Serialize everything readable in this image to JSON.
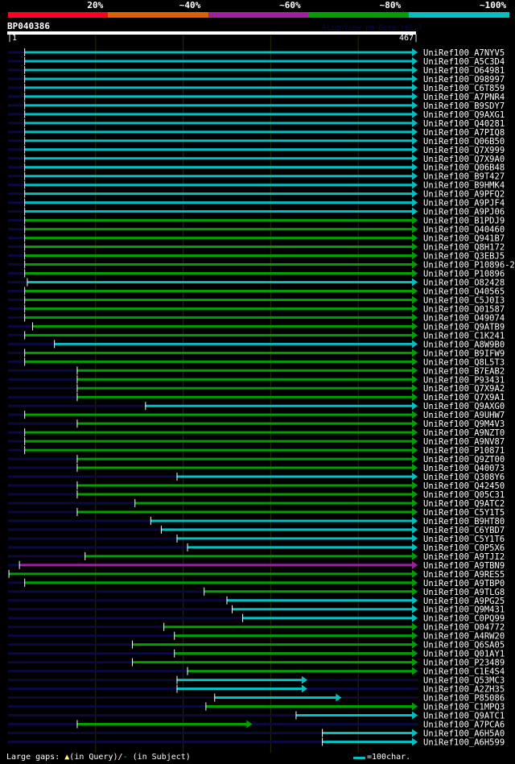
{
  "identity_scale": [
    {
      "label": "20%",
      "color": "#ff0020"
    },
    {
      "label": "~40%",
      "color": "#e06000"
    },
    {
      "label": "~60%",
      "color": "#a020a0"
    },
    {
      "label": "~80%",
      "color": "#00a000"
    },
    {
      "label": "~100%",
      "color": "#00c0c0"
    }
  ],
  "query": {
    "name": "BP040386",
    "start_label": "|1",
    "end_label": "467|",
    "length": 467
  },
  "version_text": "AlignView.pm Beta rel.7",
  "colors": {
    "cyan": "#00c0c0",
    "green": "#00a000",
    "magenta": "#a020a0",
    "subject": "#0a0a40",
    "grid": "#2a2a00"
  },
  "hits": [
    {
      "label": "UniRef100_A7NYV5",
      "start": 20,
      "end": 467,
      "c": "cyan"
    },
    {
      "label": "UniRef100_A5C3D4",
      "start": 20,
      "end": 467,
      "c": "cyan"
    },
    {
      "label": "UniRef100_O64981",
      "start": 20,
      "end": 467,
      "c": "cyan"
    },
    {
      "label": "UniRef100_O98997",
      "start": 20,
      "end": 467,
      "c": "cyan"
    },
    {
      "label": "UniRef100_C6T859",
      "start": 20,
      "end": 467,
      "c": "cyan"
    },
    {
      "label": "UniRef100_A7PNR4",
      "start": 20,
      "end": 467,
      "c": "cyan"
    },
    {
      "label": "UniRef100_B9SDY7",
      "start": 20,
      "end": 467,
      "c": "cyan"
    },
    {
      "label": "UniRef100_Q9AXG1",
      "start": 20,
      "end": 467,
      "c": "cyan"
    },
    {
      "label": "UniRef100_Q40281",
      "start": 20,
      "end": 467,
      "c": "cyan"
    },
    {
      "label": "UniRef100_A7PIQ8",
      "start": 20,
      "end": 467,
      "c": "cyan"
    },
    {
      "label": "UniRef100_Q06B50",
      "start": 20,
      "end": 467,
      "c": "cyan"
    },
    {
      "label": "UniRef100_Q7X999",
      "start": 20,
      "end": 467,
      "c": "cyan"
    },
    {
      "label": "UniRef100_Q7X9A0",
      "start": 20,
      "end": 467,
      "c": "cyan"
    },
    {
      "label": "UniRef100_Q06B48",
      "start": 20,
      "end": 467,
      "c": "cyan"
    },
    {
      "label": "UniRef100_B9T427",
      "start": 20,
      "end": 467,
      "c": "cyan"
    },
    {
      "label": "UniRef100_B9HMK4",
      "start": 20,
      "end": 467,
      "c": "cyan"
    },
    {
      "label": "UniRef100_A9PFQ2",
      "start": 20,
      "end": 467,
      "c": "cyan"
    },
    {
      "label": "UniRef100_A9PJF4",
      "start": 20,
      "end": 467,
      "c": "cyan"
    },
    {
      "label": "UniRef100_A9PJ06",
      "start": 20,
      "end": 467,
      "c": "cyan"
    },
    {
      "label": "UniRef100_B1PDJ9",
      "start": 20,
      "end": 467,
      "c": "green"
    },
    {
      "label": "UniRef100_Q40460",
      "start": 20,
      "end": 467,
      "c": "green"
    },
    {
      "label": "UniRef100_Q941B7",
      "start": 20,
      "end": 467,
      "c": "green"
    },
    {
      "label": "UniRef100_Q8H172",
      "start": 20,
      "end": 467,
      "c": "green"
    },
    {
      "label": "UniRef100_Q3EBJ5",
      "start": 20,
      "end": 467,
      "c": "green"
    },
    {
      "label": "UniRef100_P10896-2",
      "start": 20,
      "end": 467,
      "c": "green"
    },
    {
      "label": "UniRef100_P10896",
      "start": 20,
      "end": 467,
      "c": "green"
    },
    {
      "label": "UniRef100_O82428",
      "start": 23,
      "end": 467,
      "c": "cyan"
    },
    {
      "label": "UniRef100_Q40565",
      "start": 20,
      "end": 467,
      "c": "green"
    },
    {
      "label": "UniRef100_C5J0I3",
      "start": 20,
      "end": 467,
      "c": "green"
    },
    {
      "label": "UniRef100_Q01587",
      "start": 20,
      "end": 467,
      "c": "green"
    },
    {
      "label": "UniRef100_O49074",
      "start": 20,
      "end": 467,
      "c": "green"
    },
    {
      "label": "UniRef100_Q9ATB9",
      "start": 29,
      "end": 467,
      "c": "green"
    },
    {
      "label": "UniRef100_C1K241",
      "start": 20,
      "end": 467,
      "c": "green"
    },
    {
      "label": "UniRef100_A8W9B0",
      "start": 54,
      "end": 467,
      "c": "cyan"
    },
    {
      "label": "UniRef100_B9IFW9",
      "start": 20,
      "end": 467,
      "c": "green"
    },
    {
      "label": "UniRef100_Q8L5T3",
      "start": 20,
      "end": 467,
      "c": "green"
    },
    {
      "label": "UniRef100_B7EAB2",
      "start": 80,
      "end": 467,
      "c": "green"
    },
    {
      "label": "UniRef100_P93431",
      "start": 80,
      "end": 467,
      "c": "green"
    },
    {
      "label": "UniRef100_Q7X9A2",
      "start": 80,
      "end": 467,
      "c": "green"
    },
    {
      "label": "UniRef100_Q7X9A1",
      "start": 80,
      "end": 467,
      "c": "green"
    },
    {
      "label": "UniRef100_Q9AXG0",
      "start": 158,
      "end": 467,
      "c": "cyan"
    },
    {
      "label": "UniRef100_A9UHW7",
      "start": 20,
      "end": 467,
      "c": "green"
    },
    {
      "label": "UniRef100_Q9M4V3",
      "start": 80,
      "end": 467,
      "c": "green"
    },
    {
      "label": "UniRef100_A9NZT0",
      "start": 20,
      "end": 467,
      "c": "green"
    },
    {
      "label": "UniRef100_A9NV87",
      "start": 20,
      "end": 467,
      "c": "green"
    },
    {
      "label": "UniRef100_P10871",
      "start": 20,
      "end": 467,
      "c": "green"
    },
    {
      "label": "UniRef100_Q9ZT00",
      "start": 80,
      "end": 467,
      "c": "green"
    },
    {
      "label": "UniRef100_Q40073",
      "start": 80,
      "end": 467,
      "c": "green"
    },
    {
      "label": "UniRef100_Q308Y6",
      "start": 194,
      "end": 467,
      "c": "cyan"
    },
    {
      "label": "UniRef100_Q42450",
      "start": 80,
      "end": 467,
      "c": "green"
    },
    {
      "label": "UniRef100_Q05C31",
      "start": 80,
      "end": 467,
      "c": "green"
    },
    {
      "label": "UniRef100_Q9ATC2",
      "start": 146,
      "end": 467,
      "c": "green"
    },
    {
      "label": "UniRef100_C5Y1T5",
      "start": 80,
      "end": 467,
      "c": "green"
    },
    {
      "label": "UniRef100_B9HT80",
      "start": 164,
      "end": 467,
      "c": "cyan"
    },
    {
      "label": "UniRef100_C6YBD7",
      "start": 176,
      "end": 467,
      "c": "cyan"
    },
    {
      "label": "UniRef100_C5Y1T6",
      "start": 194,
      "end": 467,
      "c": "cyan"
    },
    {
      "label": "UniRef100_C0P5X6",
      "start": 206,
      "end": 467,
      "c": "cyan"
    },
    {
      "label": "UniRef100_A9TJI2",
      "start": 89,
      "end": 467,
      "c": "green"
    },
    {
      "label": "UniRef100_A9TBN9",
      "start": 14,
      "end": 467,
      "c": "magenta"
    },
    {
      "label": "UniRef100_A9RES5",
      "start": 2,
      "end": 467,
      "c": "green"
    },
    {
      "label": "UniRef100_A9TBP0",
      "start": 20,
      "end": 467,
      "c": "green"
    },
    {
      "label": "UniRef100_A9TLG8",
      "start": 225,
      "end": 467,
      "c": "green"
    },
    {
      "label": "UniRef100_A9PG25",
      "start": 251,
      "end": 467,
      "c": "cyan"
    },
    {
      "label": "UniRef100_Q9M431",
      "start": 257,
      "end": 467,
      "c": "cyan"
    },
    {
      "label": "UniRef100_C0PQ99",
      "start": 269,
      "end": 467,
      "c": "cyan"
    },
    {
      "label": "UniRef100_O04772",
      "start": 179,
      "end": 467,
      "c": "green"
    },
    {
      "label": "UniRef100_A4RW20",
      "start": 191,
      "end": 467,
      "c": "green"
    },
    {
      "label": "UniRef100_Q6SA05",
      "start": 143,
      "end": 467,
      "c": "green"
    },
    {
      "label": "UniRef100_Q01AY1",
      "start": 191,
      "end": 467,
      "c": "green"
    },
    {
      "label": "UniRef100_P23489",
      "start": 143,
      "end": 467,
      "c": "green"
    },
    {
      "label": "UniRef100_C1E4S4",
      "start": 206,
      "end": 467,
      "c": "green"
    },
    {
      "label": "UniRef100_Q53MC3",
      "start": 194,
      "end": 341,
      "c": "cyan"
    },
    {
      "label": "UniRef100_A2ZH35",
      "start": 194,
      "end": 341,
      "c": "cyan"
    },
    {
      "label": "UniRef100_P85086",
      "start": 237,
      "end": 380,
      "c": "cyan"
    },
    {
      "label": "UniRef100_C1MPQ3",
      "start": 227,
      "end": 467,
      "c": "green"
    },
    {
      "label": "UniRef100_Q9ATC1",
      "start": 330,
      "end": 467,
      "c": "cyan"
    },
    {
      "label": "UniRef100_A7PCA6",
      "start": 80,
      "end": 278,
      "c": "green"
    },
    {
      "label": "UniRef100_A6H5A0",
      "start": 360,
      "end": 467,
      "c": "cyan"
    },
    {
      "label": "UniRef100_A6H599",
      "start": 360,
      "end": 467,
      "c": "cyan"
    }
  ],
  "legend": {
    "prefix": "Large gaps:",
    "query_symbol": "▲",
    "query_text": "(in Query)/",
    "subject_symbol": "-",
    "subject_text": " (in Subject)",
    "scale_text": "=100char."
  }
}
